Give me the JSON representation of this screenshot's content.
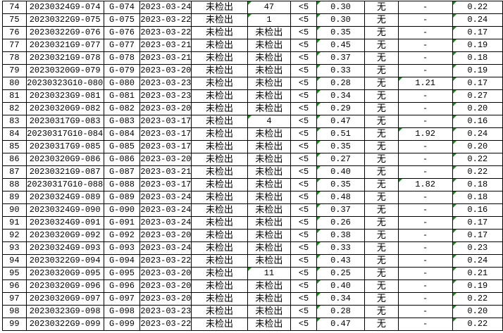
{
  "sheet": {
    "rows": [
      {
        "no": "74",
        "batch": "20230324G9-074",
        "code": "G-074",
        "date": "2023-03-24",
        "c5": "未检出",
        "c6": "47",
        "c7": "<5",
        "c8": "0.30",
        "c9": "无",
        "c10": "-",
        "c11": "0.22",
        "c6_flag": true,
        "c10_flag": false
      },
      {
        "no": "75",
        "batch": "20230322G9-075",
        "code": "G-075",
        "date": "2023-03-22",
        "c5": "未检出",
        "c6": "1",
        "c7": "<5",
        "c8": "0.30",
        "c9": "无",
        "c10": "-",
        "c11": "0.24",
        "c6_flag": true,
        "c10_flag": false
      },
      {
        "no": "76",
        "batch": "20230322G9-076",
        "code": "G-076",
        "date": "2023-03-22",
        "c5": "未检出",
        "c6": "未检出",
        "c7": "<5",
        "c8": "0.35",
        "c9": "无",
        "c10": "-",
        "c11": "0.17",
        "c6_flag": false,
        "c10_flag": false
      },
      {
        "no": "77",
        "batch": "20230321G9-077",
        "code": "G-077",
        "date": "2023-03-21",
        "c5": "未检出",
        "c6": "未检出",
        "c7": "<5",
        "c8": "0.45",
        "c9": "无",
        "c10": "-",
        "c11": "0.19",
        "c6_flag": false,
        "c10_flag": false
      },
      {
        "no": "78",
        "batch": "20230321G9-078",
        "code": "G-078",
        "date": "2023-03-21",
        "c5": "未检出",
        "c6": "未检出",
        "c7": "<5",
        "c8": "0.37",
        "c9": "无",
        "c10": "-",
        "c11": "0.18",
        "c6_flag": false,
        "c10_flag": false
      },
      {
        "no": "79",
        "batch": "20230320G9-079",
        "code": "G-079",
        "date": "2023-03-20",
        "c5": "未检出",
        "c6": "未检出",
        "c7": "<5",
        "c8": "0.33",
        "c9": "无",
        "c10": "-",
        "c11": "0.19",
        "c6_flag": false,
        "c10_flag": false
      },
      {
        "no": "80",
        "batch": "20230323G10-080",
        "code": "G-080",
        "date": "2023-03-23",
        "c5": "未检出",
        "c6": "未检出",
        "c7": "<5",
        "c8": "0.28",
        "c9": "无",
        "c10": "1.21",
        "c11": "0.17",
        "c6_flag": false,
        "c10_flag": true
      },
      {
        "no": "81",
        "batch": "20230323G9-081",
        "code": "G-081",
        "date": "2023-03-23",
        "c5": "未检出",
        "c6": "未检出",
        "c7": "<5",
        "c8": "0.34",
        "c9": "无",
        "c10": "-",
        "c11": "0.27",
        "c6_flag": false,
        "c10_flag": false
      },
      {
        "no": "82",
        "batch": "20230320G9-082",
        "code": "G-082",
        "date": "2023-03-20",
        "c5": "未检出",
        "c6": "未检出",
        "c7": "<5",
        "c8": "0.29",
        "c9": "无",
        "c10": "-",
        "c11": "0.20",
        "c6_flag": false,
        "c10_flag": false
      },
      {
        "no": "83",
        "batch": "20230317G9-083",
        "code": "G-083",
        "date": "2023-03-17",
        "c5": "未检出",
        "c6": "4",
        "c7": "<5",
        "c8": "0.47",
        "c9": "无",
        "c10": "-",
        "c11": "0.16",
        "c6_flag": true,
        "c10_flag": false
      },
      {
        "no": "84",
        "batch": "20230317G10-084",
        "code": "G-084",
        "date": "2023-03-17",
        "c5": "未检出",
        "c6": "未检出",
        "c7": "<5",
        "c8": "0.51",
        "c9": "无",
        "c10": "1.92",
        "c11": "0.24",
        "c6_flag": false,
        "c10_flag": true
      },
      {
        "no": "85",
        "batch": "20230317G9-085",
        "code": "G-085",
        "date": "2023-03-17",
        "c5": "未检出",
        "c6": "未检出",
        "c7": "<5",
        "c8": "0.35",
        "c9": "无",
        "c10": "-",
        "c11": "0.20",
        "c6_flag": false,
        "c10_flag": false
      },
      {
        "no": "86",
        "batch": "20230320G9-086",
        "code": "G-086",
        "date": "2023-03-20",
        "c5": "未检出",
        "c6": "未检出",
        "c7": "<5",
        "c8": "0.27",
        "c9": "无",
        "c10": "-",
        "c11": "0.22",
        "c6_flag": false,
        "c10_flag": false
      },
      {
        "no": "87",
        "batch": "20230321G9-087",
        "code": "G-087",
        "date": "2023-03-21",
        "c5": "未检出",
        "c6": "未检出",
        "c7": "<5",
        "c8": "0.40",
        "c9": "无",
        "c10": "-",
        "c11": "0.22",
        "c6_flag": false,
        "c10_flag": false
      },
      {
        "no": "88",
        "batch": "20230317G10-088",
        "code": "G-088",
        "date": "2023-03-17",
        "c5": "未检出",
        "c6": "未检出",
        "c7": "<5",
        "c8": "0.35",
        "c9": "无",
        "c10": "1.82",
        "c11": "0.18",
        "c6_flag": false,
        "c10_flag": true
      },
      {
        "no": "89",
        "batch": "20230324G9-089",
        "code": "G-089",
        "date": "2023-03-24",
        "c5": "未检出",
        "c6": "未检出",
        "c7": "<5",
        "c8": "0.48",
        "c9": "无",
        "c10": "-",
        "c11": "0.18",
        "c6_flag": false,
        "c10_flag": false
      },
      {
        "no": "90",
        "batch": "20230324G9-090",
        "code": "G-090",
        "date": "2023-03-24",
        "c5": "未检出",
        "c6": "未检出",
        "c7": "<5",
        "c8": "0.37",
        "c9": "无",
        "c10": "-",
        "c11": "0.16",
        "c6_flag": false,
        "c10_flag": false
      },
      {
        "no": "91",
        "batch": "20230324G9-091",
        "code": "G-091",
        "date": "2023-03-24",
        "c5": "未检出",
        "c6": "未检出",
        "c7": "<5",
        "c8": "0.26",
        "c9": "无",
        "c10": "-",
        "c11": "0.17",
        "c6_flag": false,
        "c10_flag": false
      },
      {
        "no": "92",
        "batch": "20230320G9-092",
        "code": "G-092",
        "date": "2023-03-20",
        "c5": "未检出",
        "c6": "未检出",
        "c7": "<5",
        "c8": "0.38",
        "c9": "无",
        "c10": "-",
        "c11": "0.17",
        "c6_flag": false,
        "c10_flag": false
      },
      {
        "no": "93",
        "batch": "20230324G9-093",
        "code": "G-093",
        "date": "2023-03-24",
        "c5": "未检出",
        "c6": "未检出",
        "c7": "<5",
        "c8": "0.33",
        "c9": "无",
        "c10": "-",
        "c11": "0.23",
        "c6_flag": false,
        "c10_flag": false
      },
      {
        "no": "94",
        "batch": "20230322G9-094",
        "code": "G-094",
        "date": "2023-03-22",
        "c5": "未检出",
        "c6": "未检出",
        "c7": "<5",
        "c8": "0.43",
        "c9": "无",
        "c10": "-",
        "c11": "0.24",
        "c6_flag": false,
        "c10_flag": false
      },
      {
        "no": "95",
        "batch": "20230320G9-095",
        "code": "G-095",
        "date": "2023-03-20",
        "c5": "未检出",
        "c6": "11",
        "c7": "<5",
        "c8": "0.25",
        "c9": "无",
        "c10": "-",
        "c11": "0.21",
        "c6_flag": true,
        "c10_flag": false
      },
      {
        "no": "96",
        "batch": "20230320G9-096",
        "code": "G-096",
        "date": "2023-03-20",
        "c5": "未检出",
        "c6": "未检出",
        "c7": "<5",
        "c8": "0.40",
        "c9": "无",
        "c10": "-",
        "c11": "0.19",
        "c6_flag": false,
        "c10_flag": false
      },
      {
        "no": "97",
        "batch": "20230320G9-097",
        "code": "G-097",
        "date": "2023-03-20",
        "c5": "未检出",
        "c6": "未检出",
        "c7": "<5",
        "c8": "0.34",
        "c9": "无",
        "c10": "-",
        "c11": "0.22",
        "c6_flag": false,
        "c10_flag": false
      },
      {
        "no": "98",
        "batch": "20230323G9-098",
        "code": "G-098",
        "date": "2023-03-23",
        "c5": "未检出",
        "c6": "未检出",
        "c7": "<5",
        "c8": "0.28",
        "c9": "无",
        "c10": "-",
        "c11": "0.20",
        "c6_flag": false,
        "c10_flag": false
      },
      {
        "no": "99",
        "batch": "20230322G9-099",
        "code": "G-099",
        "date": "2023-03-22",
        "c5": "未检出",
        "c6": "未检出",
        "c7": "<5",
        "c8": "0.47",
        "c9": "无",
        "c10": "-",
        "c11": "0.22",
        "c6_flag": false,
        "c10_flag": false
      }
    ],
    "flag_color": "#1a8a1a"
  }
}
